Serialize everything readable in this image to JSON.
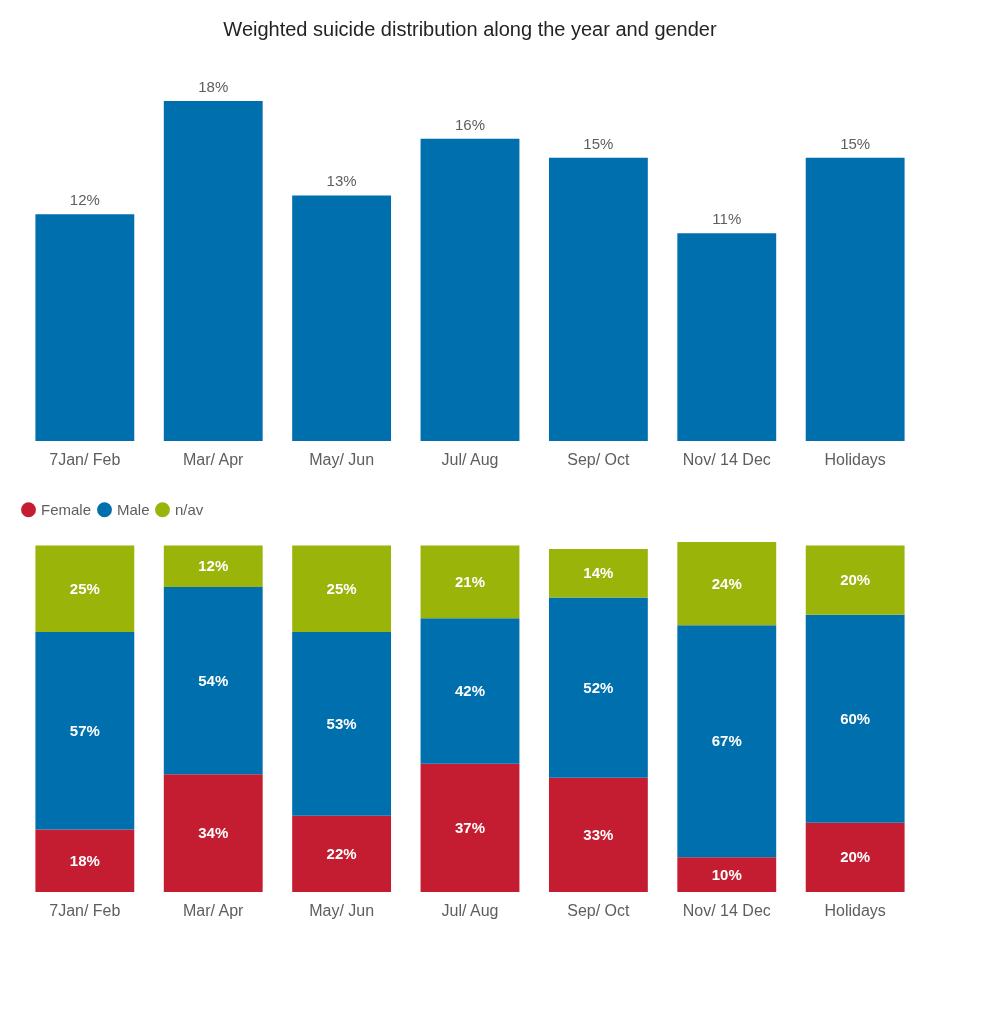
{
  "chart_data": [
    {
      "type": "bar",
      "title": "Weighted suicide distribution along the year and gender",
      "categories": [
        "7Jan/ Feb",
        "Mar/ Apr",
        "May/ Jun",
        "Jul/ Aug",
        "Sep/ Oct",
        "Nov/ 14 Dec",
        "Holidays"
      ],
      "values": [
        12,
        18,
        13,
        16,
        15,
        11,
        15
      ],
      "color": "#006fad",
      "value_labels": [
        "12%",
        "18%",
        "13%",
        "16%",
        "15%",
        "11%",
        "15%"
      ],
      "tick_labels": "x",
      "grid": false,
      "legend": false
    },
    {
      "type": "bar",
      "stacked": true,
      "categories": [
        "7Jan/ Feb",
        "Mar/ Apr",
        "May/ Jun",
        "Jul/ Aug",
        "Sep/ Oct",
        "Nov/ 14 Dec",
        "Holidays"
      ],
      "series": [
        {
          "name": "Female",
          "color": "#c41c30",
          "values": [
            18,
            34,
            22,
            37,
            33,
            10,
            20
          ],
          "value_labels": [
            "18%",
            "34%",
            "22%",
            "37%",
            "33%",
            "10%",
            "20%"
          ]
        },
        {
          "name": "Male",
          "color": "#006fad",
          "values": [
            57,
            54,
            53,
            42,
            52,
            67,
            60
          ],
          "value_labels": [
            "57%",
            "54%",
            "53%",
            "42%",
            "52%",
            "67%",
            "60%"
          ]
        },
        {
          "name": "n/av",
          "color": "#9ab40a",
          "values": [
            25,
            12,
            25,
            21,
            14,
            24,
            20
          ],
          "value_labels": [
            "25%",
            "12%",
            "25%",
            "21%",
            "14%",
            "24%",
            "20%"
          ]
        }
      ],
      "tick_labels": "x",
      "grid": false,
      "legend": "top left"
    }
  ]
}
